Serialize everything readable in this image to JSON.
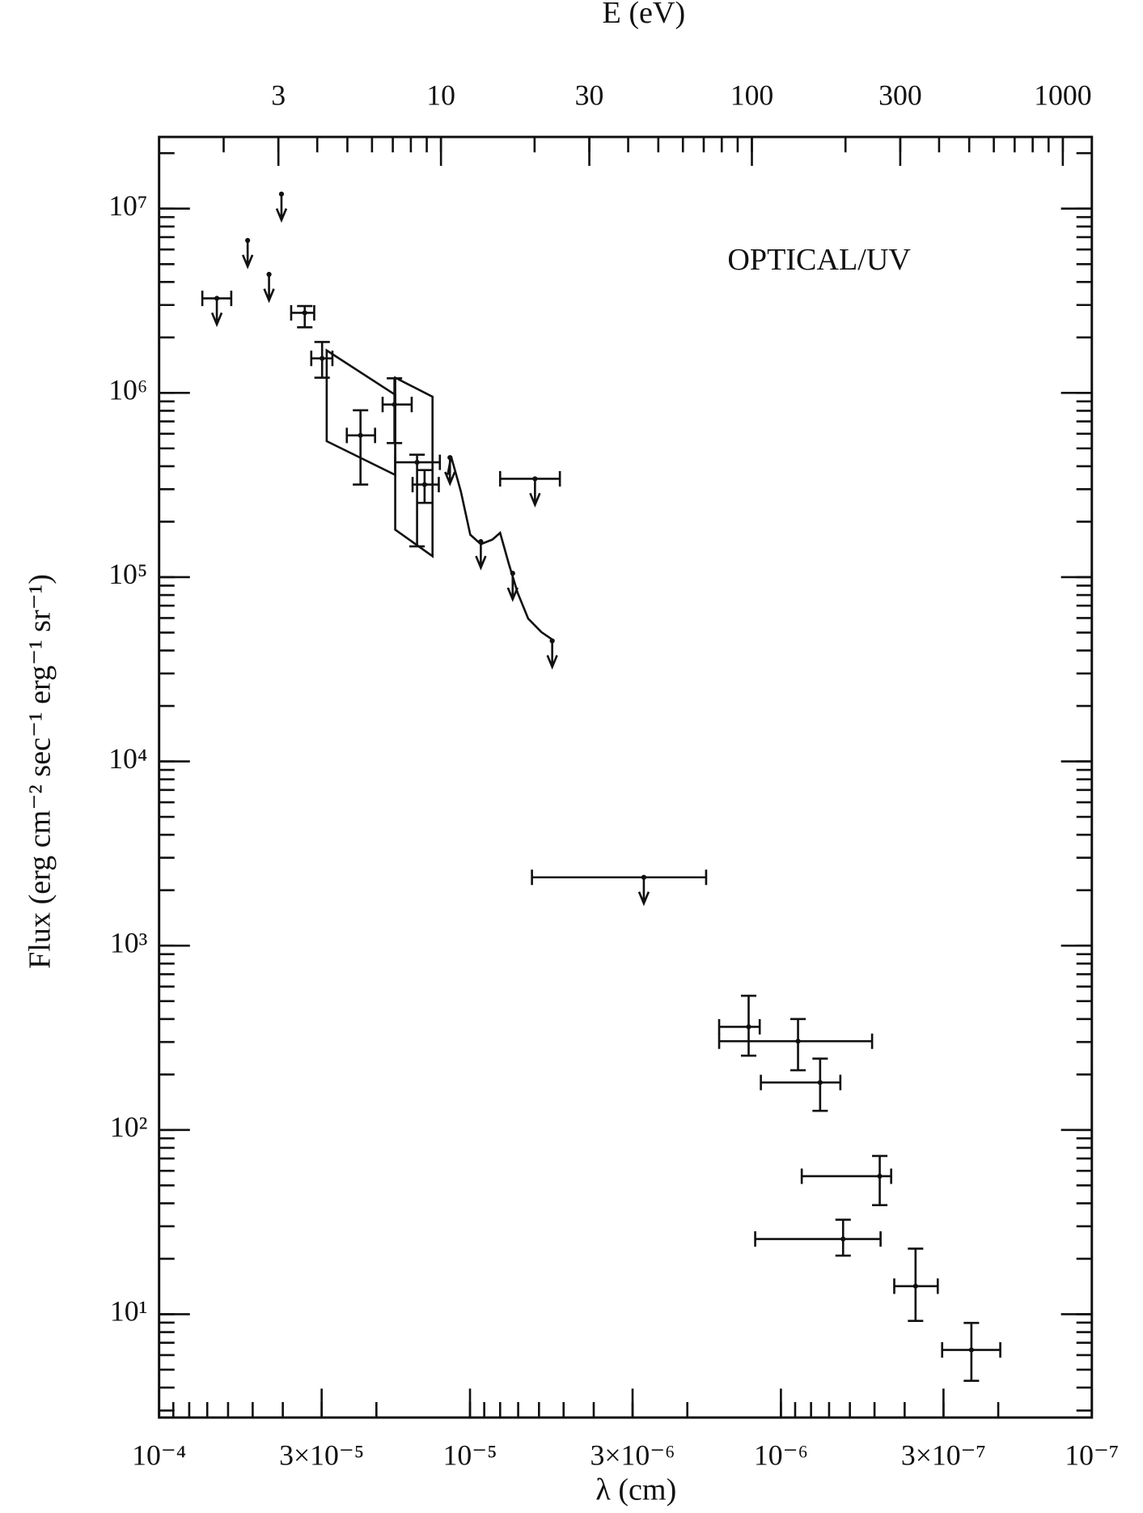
{
  "chart_data": {
    "type": "scatter",
    "x_label": "λ (cm)",
    "x2_label": "E (eV)",
    "y_label": "Flux (erg cm⁻² sec⁻¹ erg⁻¹ sr⁻¹)",
    "annotation": "OPTICAL/UV",
    "log_x": true,
    "log_y": true,
    "xlim": [
      0.0001,
      1e-07
    ],
    "xticks": [
      {
        "value": 0.0001,
        "label": "10⁻⁴"
      },
      {
        "value": 3e-05,
        "label": "3×10⁻⁵"
      },
      {
        "value": 1e-05,
        "label": "10⁻⁵"
      },
      {
        "value": 3e-06,
        "label": "3×10⁻⁶"
      },
      {
        "value": 1e-06,
        "label": "10⁻⁶"
      },
      {
        "value": 3e-07,
        "label": "3×10⁻⁷"
      },
      {
        "value": 1e-07,
        "label": "10⁻⁷"
      }
    ],
    "x2lim": [
      1.2398,
      1239.8
    ],
    "x2ticks": [
      3,
      10,
      30,
      100,
      300,
      1000
    ],
    "ylim": [
      2.75,
      24500000
    ],
    "yticks": [
      {
        "value": 10,
        "label": "10¹"
      },
      {
        "value": 100,
        "label": "10²"
      },
      {
        "value": 1000,
        "label": "10³"
      },
      {
        "value": 10000,
        "label": "10⁴"
      },
      {
        "value": 100000,
        "label": "10⁵"
      },
      {
        "value": 1000000,
        "label": "10⁶"
      },
      {
        "value": 10000000,
        "label": "10⁷"
      }
    ],
    "color": "#111111",
    "x": [
      6.52e-05,
      5.19e-05,
      4.43e-05,
      4.04e-05,
      3.4e-05,
      2.99e-05,
      2.25e-05,
      1.75e-05,
      1.48e-05,
      1.4e-05,
      1.16e-05,
      9.23e-06,
      7.29e-06,
      5.44e-06,
      6.18e-06,
      2.76e-06,
      1.27e-06,
      8.81e-07,
      7.48e-07,
      4.81e-07,
      6.31e-07,
      3.69e-07,
      2.44e-07
    ],
    "values": [
      3260000,
      6720000,
      4400000,
      12000000,
      2720000,
      1540000,
      588000,
      865000,
      420000,
      318000,
      446000,
      156000,
      105000,
      45100,
      342000,
      2350,
      363,
      303,
      181,
      56.1,
      25.6,
      14.2,
      6.4
    ],
    "x_low": [
      5.86e-05,
      null,
      null,
      null,
      3.17e-05,
      2.77e-05,
      2.02e-05,
      1.54e-05,
      1.25e-05,
      1.26e-05,
      null,
      null,
      null,
      null,
      5.14e-06,
      1.74e-06,
      1.17e-06,
      5.09e-07,
      6.44e-07,
      4.42e-07,
      4.78e-07,
      3.13e-07,
      1.97e-07
    ],
    "x_high": [
      7.26e-05,
      null,
      null,
      null,
      3.76e-05,
      3.24e-05,
      2.49e-05,
      1.91e-05,
      1.74e-05,
      1.53e-05,
      null,
      null,
      null,
      null,
      8e-06,
      6.32e-06,
      1.58e-06,
      1.58e-06,
      1.16e-06,
      8.57e-07,
      1.21e-06,
      4.32e-07,
      3.03e-07
    ],
    "y_low": [
      null,
      null,
      null,
      null,
      2270000,
      1210000,
      318000,
      534000,
      147000,
      253000,
      null,
      null,
      null,
      null,
      null,
      null,
      253,
      211,
      127,
      39.1,
      20.8,
      9.2,
      4.35
    ],
    "y_high": [
      null,
      null,
      null,
      null,
      2960000,
      1890000,
      805000,
      1200000,
      462000,
      381000,
      null,
      null,
      null,
      null,
      null,
      null,
      535,
      400,
      244,
      72.3,
      32.6,
      22.7,
      8.97
    ],
    "upper_limit": [
      true,
      true,
      true,
      true,
      false,
      false,
      false,
      false,
      false,
      false,
      true,
      true,
      true,
      true,
      true,
      true,
      false,
      false,
      false,
      false,
      false,
      false,
      false
    ],
    "lines": [
      {
        "closed": true,
        "x": [
          2.89e-05,
          1.74e-05,
          1.74e-05,
          2.89e-05
        ],
        "values": [
          1700000,
          977000,
          359000,
          547000
        ]
      },
      {
        "closed": true,
        "x": [
          1.74e-05,
          1.32e-05,
          1.32e-05,
          1.74e-05
        ],
        "values": [
          1210000,
          953000,
          130000,
          181000
        ]
      },
      {
        "closed": false,
        "x": [
          1.18e-05,
          1.15e-05,
          1.07e-05,
          9.98e-06,
          9.23e-06,
          8.47e-06,
          8e-06,
          7.5e-06,
          7.03e-06,
          6.5e-06,
          5.89e-06,
          5.36e-06
        ],
        "values": [
          359000,
          451000,
          292000,
          170000,
          151000,
          160000,
          174000,
          118000,
          82400,
          59600,
          50300,
          45100
        ]
      }
    ]
  }
}
